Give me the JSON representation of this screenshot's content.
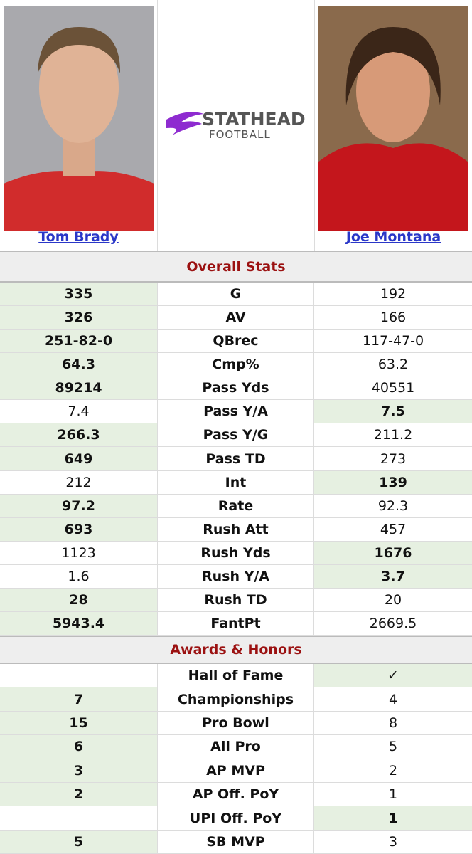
{
  "header": {
    "logo_top": "STATHEAD",
    "logo_bottom": "FOOTBALL",
    "players": [
      "Tom Brady",
      "Joe Montana"
    ]
  },
  "sections": [
    {
      "title": "Overall Stats",
      "rows": [
        {
          "left": "335",
          "label": "G",
          "right": "192",
          "highlight": "left"
        },
        {
          "left": "326",
          "label": "AV",
          "right": "166",
          "highlight": "left"
        },
        {
          "left": "251-82-0",
          "label": "QBrec",
          "right": "117-47-0",
          "highlight": "left"
        },
        {
          "left": "64.3",
          "label": "Cmp%",
          "right": "63.2",
          "highlight": "left"
        },
        {
          "left": "89214",
          "label": "Pass Yds",
          "right": "40551",
          "highlight": "left"
        },
        {
          "left": "7.4",
          "label": "Pass Y/A",
          "right": "7.5",
          "highlight": "right"
        },
        {
          "left": "266.3",
          "label": "Pass Y/G",
          "right": "211.2",
          "highlight": "left"
        },
        {
          "left": "649",
          "label": "Pass TD",
          "right": "273",
          "highlight": "left"
        },
        {
          "left": "212",
          "label": "Int",
          "right": "139",
          "highlight": "right"
        },
        {
          "left": "97.2",
          "label": "Rate",
          "right": "92.3",
          "highlight": "left"
        },
        {
          "left": "693",
          "label": "Rush Att",
          "right": "457",
          "highlight": "left"
        },
        {
          "left": "1123",
          "label": "Rush Yds",
          "right": "1676",
          "highlight": "right"
        },
        {
          "left": "1.6",
          "label": "Rush Y/A",
          "right": "3.7",
          "highlight": "right"
        },
        {
          "left": "28",
          "label": "Rush TD",
          "right": "20",
          "highlight": "left"
        },
        {
          "left": "5943.4",
          "label": "FantPt",
          "right": "2669.5",
          "highlight": "left"
        }
      ]
    },
    {
      "title": "Awards & Honors",
      "rows": [
        {
          "left": null,
          "label": "Hall of Fame",
          "right": "✓",
          "highlight": "right"
        },
        {
          "left": "7",
          "label": "Championships",
          "right": "4",
          "highlight": "left"
        },
        {
          "left": "15",
          "label": "Pro Bowl",
          "right": "8",
          "highlight": "left"
        },
        {
          "left": "6",
          "label": "All Pro",
          "right": "5",
          "highlight": "left"
        },
        {
          "left": "3",
          "label": "AP MVP",
          "right": "2",
          "highlight": "left"
        },
        {
          "left": "2",
          "label": "AP Off. PoY",
          "right": "1",
          "highlight": "left"
        },
        {
          "left": null,
          "label": "UPI Off. PoY",
          "right": "1",
          "highlight": "right"
        },
        {
          "left": "5",
          "label": "SB MVP",
          "right": "3",
          "highlight": "left"
        }
      ]
    }
  ]
}
